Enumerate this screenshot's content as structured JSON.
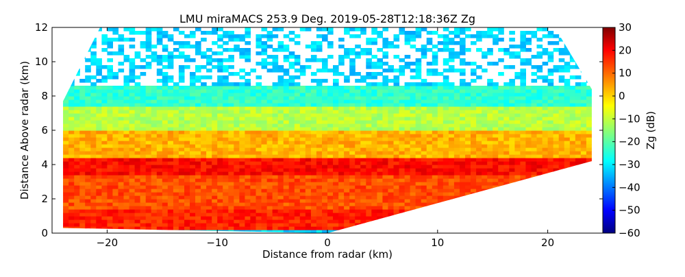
{
  "chart_data": {
    "type": "heatmap",
    "title": "LMU miraMACS 253.9 Deg. 2019-05-28T12:18:36Z  Zg",
    "xlabel": "Distance from radar (km)",
    "ylabel": "Distance Above radar  (km)",
    "xlim": [
      -25,
      25
    ],
    "ylim": [
      0,
      12
    ],
    "x_ticks": [
      -20,
      -10,
      0,
      10,
      20
    ],
    "y_ticks": [
      0,
      2,
      4,
      6,
      8,
      10,
      12
    ],
    "colorbar": {
      "label": "Zg (dB)",
      "range": [
        -60,
        30
      ],
      "ticks": [
        30,
        20,
        10,
        0,
        -10,
        -20,
        -30,
        -40,
        -50,
        -60
      ],
      "colormap": "jet"
    },
    "scan": {
      "left_edge_top_km": 7.7,
      "right_edge_top_km": 8.4,
      "right_lower_edge_km": [
        0.2,
        4.2
      ],
      "max_range_km": 24,
      "max_height_km": 12
    },
    "layers": [
      {
        "height_km": [
          0.3,
          1.5
        ],
        "zg_db": 16
      },
      {
        "height_km": [
          1.5,
          3.5
        ],
        "zg_db": 12
      },
      {
        "height_km": [
          3.5,
          4.5
        ],
        "zg_db": 18
      },
      {
        "height_km": [
          4.5,
          6.0
        ],
        "zg_db": 3
      },
      {
        "height_km": [
          6.0,
          7.5
        ],
        "zg_db": -10
      },
      {
        "height_km": [
          7.5,
          8.7
        ],
        "zg_db": -22
      },
      {
        "height_km": [
          8.7,
          12.0
        ],
        "zg_db": -30
      }
    ],
    "grid": false
  }
}
